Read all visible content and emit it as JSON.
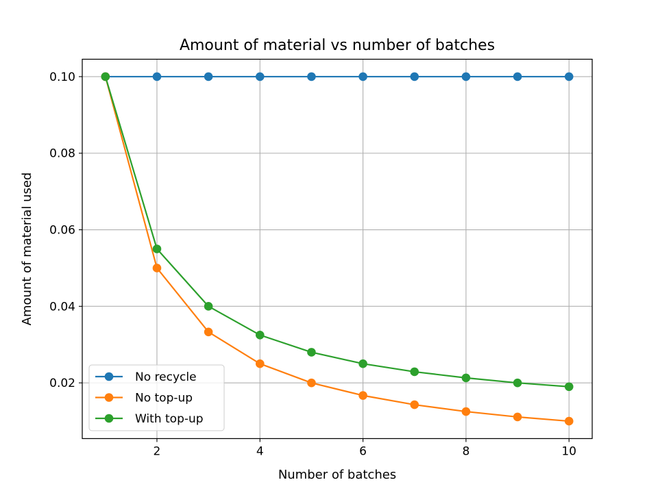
{
  "chart_data": {
    "type": "line",
    "title": "Amount of material vs number of batches",
    "xlabel": "Number of batches",
    "ylabel": "Amount of material used",
    "xlim": [
      0.55,
      10.45
    ],
    "ylim": [
      0.00545,
      0.10455
    ],
    "xticks": [
      2,
      4,
      6,
      8,
      10
    ],
    "xtick_labels": [
      "2",
      "4",
      "6",
      "8",
      "10"
    ],
    "yticks": [
      0.02,
      0.04,
      0.06,
      0.08,
      0.1
    ],
    "ytick_labels": [
      "0.02",
      "0.04",
      "0.06",
      "0.08",
      "0.10"
    ],
    "grid": true,
    "legend_position": "lower-left",
    "x": [
      1,
      2,
      3,
      4,
      5,
      6,
      7,
      8,
      9,
      10
    ],
    "series": [
      {
        "name": "No recycle",
        "color": "#1f77b4",
        "values": [
          0.1,
          0.1,
          0.1,
          0.1,
          0.1,
          0.1,
          0.1,
          0.1,
          0.1,
          0.1
        ]
      },
      {
        "name": "No top-up",
        "color": "#ff7f0e",
        "values": [
          0.1,
          0.05,
          0.0333,
          0.025,
          0.02,
          0.0167,
          0.0143,
          0.0125,
          0.0111,
          0.01
        ]
      },
      {
        "name": "With top-up",
        "color": "#2ca02c",
        "values": [
          0.1,
          0.055,
          0.04,
          0.0325,
          0.028,
          0.025,
          0.0229,
          0.0213,
          0.02,
          0.019
        ]
      }
    ]
  }
}
